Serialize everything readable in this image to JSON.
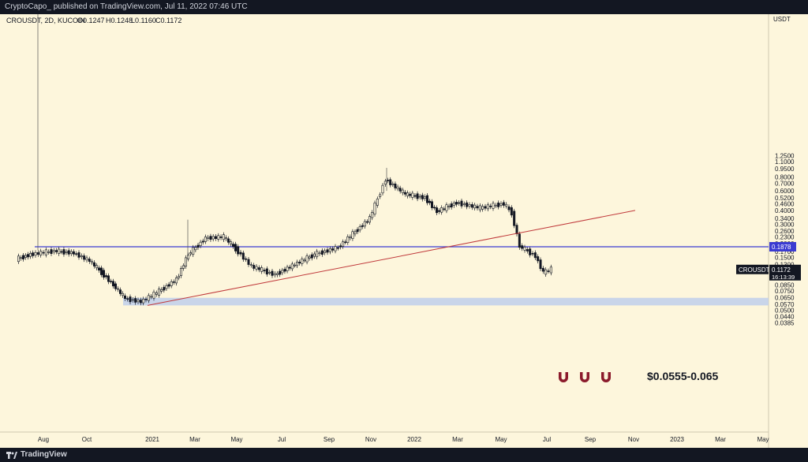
{
  "header": {
    "published_text": "CryptoCapo_ published on TradingView.com, Jul 11, 2022 07:46 UTC"
  },
  "footer": {
    "brand": "TradingView",
    "logo_icon": "tradingview-logo-icon"
  },
  "colors": {
    "background": "#fdf6dc",
    "candle": "#131722",
    "horizontal_line": "#3b3bd1",
    "trendline": "#c0393b",
    "zone": "#c3d2ea",
    "magnet": "#8b1a2b"
  },
  "chart_data": {
    "type": "candlestick",
    "symbol_info": "CROUSDT, 2D, KUCOIN",
    "ohlc": {
      "O": "O0.1247",
      "H": "H0.1248",
      "L": "L0.1160",
      "C": "C0.1172"
    },
    "currency": "USDT",
    "scale": "log",
    "yticks": [
      "1.2500",
      "1.1000",
      "0.9500",
      "0.8000",
      "0.7000",
      "0.6000",
      "0.5200",
      "0.4600",
      "0.4000",
      "0.3400",
      "0.3000",
      "0.2600",
      "0.2300",
      "0.2000",
      "0.1700",
      "0.1500",
      "0.1300",
      "0.1000",
      "0.0850",
      "0.0750",
      "0.0650",
      "0.0570",
      "0.0500",
      "0.0440",
      "0.0385"
    ],
    "xticks": [
      "Aug",
      "Oct",
      "2021",
      "Mar",
      "May",
      "Jul",
      "Sep",
      "Nov",
      "2022",
      "Mar",
      "May",
      "Jul",
      "Sep",
      "Nov",
      "2023",
      "Mar",
      "May"
    ],
    "price_points": [
      {
        "date": "Jun",
        "close": 0.145
      },
      {
        "date": "Jul",
        "close": 0.16
      },
      {
        "date": "Aug",
        "close": 0.172
      },
      {
        "date": "Sep",
        "close": 0.165
      },
      {
        "date": "Oct",
        "close": 0.14
      },
      {
        "date": "Oct",
        "close": 0.11
      },
      {
        "date": "Nov",
        "close": 0.085
      },
      {
        "date": "Dec",
        "close": 0.064
      },
      {
        "date": "Dec",
        "close": 0.06
      },
      {
        "date": "Jan",
        "close": 0.072
      },
      {
        "date": "Feb",
        "close": 0.095
      },
      {
        "date": "Feb",
        "close": 0.16
      },
      {
        "date": "Mar",
        "close": 0.225
      },
      {
        "date": "Apr",
        "close": 0.23
      },
      {
        "date": "May",
        "close": 0.18
      },
      {
        "date": "Jun",
        "close": 0.125
      },
      {
        "date": "Jul",
        "close": 0.105
      },
      {
        "date": "Aug",
        "close": 0.13
      },
      {
        "date": "Sep",
        "close": 0.16
      },
      {
        "date": "Oct",
        "close": 0.185
      },
      {
        "date": "Nov",
        "close": 0.34
      },
      {
        "date": "Nov",
        "close": 0.76
      },
      {
        "date": "Dec",
        "close": 0.56
      },
      {
        "date": "Dec",
        "close": 0.52
      },
      {
        "date": "Jan",
        "close": 0.39
      },
      {
        "date": "Feb",
        "close": 0.47
      },
      {
        "date": "Mar",
        "close": 0.42
      },
      {
        "date": "Apr",
        "close": 0.46
      },
      {
        "date": "May",
        "close": 0.38
      },
      {
        "date": "May",
        "close": 0.19
      },
      {
        "date": "Jun",
        "close": 0.155
      },
      {
        "date": "Jun",
        "close": 0.11
      },
      {
        "date": "Jul",
        "close": 0.1172
      }
    ],
    "horizontal_line": {
      "price": 0.1878,
      "label": "0.1878"
    },
    "trendline": [
      {
        "date": "Dec 2020",
        "price": 0.0555
      },
      {
        "date": "Nov 2022",
        "price": 0.4
      }
    ],
    "support_zone": {
      "low": 0.0555,
      "high": 0.065,
      "label": "$0.0555-0.065",
      "icon": "magnet-icon",
      "icon_count": 3
    },
    "last_price": {
      "symbol": "CROUSDT",
      "price": "0.1172",
      "countdown": "16:13:39"
    }
  }
}
